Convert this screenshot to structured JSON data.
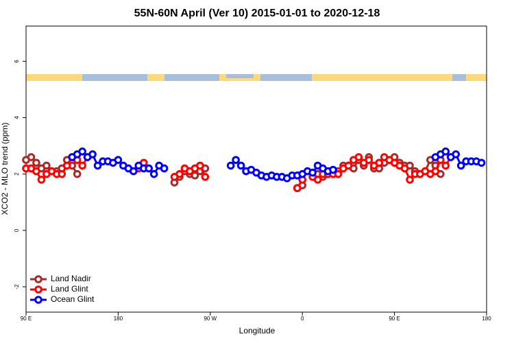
{
  "chart_data": {
    "type": "line",
    "title": "55N-60N April (Ver 10)   2015-01-01 to 2020-12-18",
    "x_label": "Longitude",
    "y_label": "XCO2 - MLO trend (ppm)",
    "x": [
      90,
      95,
      100,
      105,
      110,
      115,
      120,
      125,
      130,
      135,
      140,
      145,
      150,
      155,
      160,
      165,
      170,
      175,
      180,
      185,
      190,
      195,
      200,
      205,
      210,
      215,
      220,
      225,
      230,
      235,
      240,
      245,
      250,
      255,
      260,
      265,
      270,
      275,
      280,
      285,
      290,
      295,
      300,
      305,
      310,
      315,
      320,
      325,
      330,
      335,
      340,
      345,
      350,
      355,
      360,
      365,
      370,
      375,
      380,
      385,
      390,
      395,
      400,
      405,
      410,
      415,
      420,
      425,
      430,
      435,
      440,
      445,
      450,
      455,
      460,
      465,
      470,
      475,
      480,
      485,
      490,
      495,
      500,
      505,
      510,
      515,
      520,
      525,
      530,
      535,
      540
    ],
    "xlim": [
      90,
      540
    ],
    "xticks": [
      {
        "value": 90,
        "label": "90 E"
      },
      {
        "value": 180,
        "label": "180"
      },
      {
        "value": 270,
        "label": "90 W"
      },
      {
        "value": 360,
        "label": "0"
      },
      {
        "value": 450,
        "label": "90 E"
      },
      {
        "value": 540,
        "label": "180"
      }
    ],
    "ylim": [
      -2.9,
      7.25
    ],
    "yticks": [
      -2,
      0,
      2,
      4,
      6
    ],
    "grid": false,
    "legend": "bottom-left",
    "series": [
      {
        "name": "Land Nadir",
        "color": "#a52a2a",
        "values": [
          2.5,
          2.6,
          2.4,
          2.2,
          2.3,
          2.1,
          2.1,
          2.2,
          2.5,
          2.3,
          2.0,
          null,
          null,
          null,
          null,
          null,
          null,
          null,
          null,
          null,
          null,
          null,
          null,
          null,
          null,
          null,
          null,
          null,
          null,
          1.7,
          1.9,
          2.1,
          2.0,
          1.95,
          2.1,
          2.2,
          null,
          null,
          null,
          null,
          null,
          null,
          null,
          null,
          null,
          null,
          null,
          null,
          null,
          null,
          null,
          null,
          null,
          1.5,
          1.6,
          null,
          1.9,
          2.0,
          1.9,
          2.0,
          2.0,
          2.1,
          2.3,
          2.3,
          2.2,
          2.5,
          2.3,
          2.6,
          2.2,
          2.2,
          2.4,
          2.5,
          2.6,
          2.4,
          2.3,
          2.3,
          2.1,
          2.0,
          2.1,
          2.5,
          2.3,
          2.0,
          null,
          null,
          null,
          null,
          null,
          null,
          null,
          null,
          null
        ]
      },
      {
        "name": "Land Glint",
        "color": "#ff0000",
        "values": [
          2.2,
          2.2,
          2.1,
          1.8,
          2.0,
          2.1,
          2.0,
          2.0,
          2.3,
          2.6,
          2.5,
          2.3,
          2.6,
          null,
          null,
          null,
          null,
          null,
          null,
          null,
          null,
          null,
          2.2,
          2.4,
          null,
          null,
          null,
          null,
          null,
          1.9,
          2.0,
          2.2,
          2.1,
          2.2,
          2.3,
          1.9,
          null,
          null,
          null,
          null,
          null,
          null,
          null,
          null,
          null,
          null,
          null,
          null,
          null,
          null,
          null,
          null,
          null,
          1.5,
          1.8,
          null,
          1.9,
          1.8,
          2.0,
          2.0,
          2.0,
          2.0,
          2.2,
          2.3,
          2.5,
          2.6,
          2.4,
          2.5,
          2.3,
          2.4,
          2.6,
          2.5,
          2.4,
          2.3,
          2.2,
          1.8,
          2.0,
          2.0,
          2.1,
          2.0,
          2.1,
          2.5,
          2.3,
          2.6,
          null,
          null,
          null,
          null,
          null,
          null,
          null
        ]
      },
      {
        "name": "Ocean Glint",
        "color": "#0000ff",
        "values": [
          null,
          null,
          null,
          null,
          null,
          null,
          null,
          null,
          null,
          2.6,
          2.7,
          2.8,
          2.6,
          2.7,
          2.3,
          2.45,
          2.45,
          2.4,
          2.5,
          2.3,
          2.2,
          2.1,
          2.3,
          2.2,
          2.2,
          2.0,
          2.3,
          2.2,
          null,
          null,
          null,
          null,
          null,
          null,
          null,
          null,
          null,
          null,
          null,
          null,
          2.3,
          2.5,
          2.3,
          2.1,
          2.15,
          2.05,
          1.95,
          1.9,
          1.95,
          1.9,
          1.9,
          1.85,
          1.95,
          1.95,
          2.0,
          2.1,
          2.05,
          2.3,
          2.2,
          2.1,
          2.15,
          null,
          null,
          null,
          null,
          null,
          null,
          null,
          null,
          null,
          null,
          null,
          null,
          null,
          null,
          null,
          null,
          null,
          null,
          null,
          2.6,
          2.7,
          2.8,
          2.6,
          2.7,
          2.3,
          2.45,
          2.45,
          2.45,
          2.4,
          null
        ]
      }
    ]
  }
}
